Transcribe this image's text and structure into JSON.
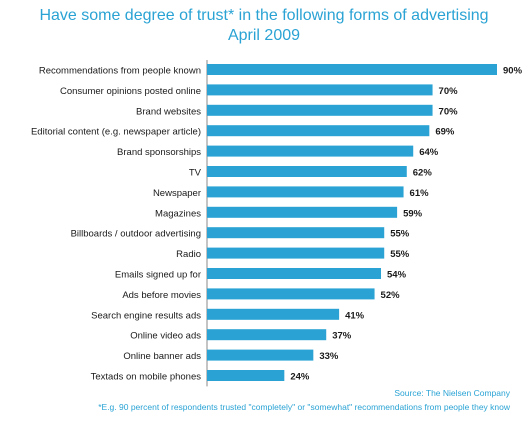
{
  "chart_data": {
    "type": "bar",
    "orientation": "horizontal",
    "title": "Have some degree of trust* in the following forms of advertising",
    "subtitle": "April 2009",
    "categories": [
      "Recommendations from people known",
      "Consumer opinions posted online",
      "Brand websites",
      "Editorial content (e.g. newspaper article)",
      "Brand sponsorships",
      "TV",
      "Newspaper",
      "Magazines",
      "Billboards / outdoor advertising",
      "Radio",
      "Emails signed up for",
      "Ads before movies",
      "Search engine results ads",
      "Online video ads",
      "Online banner ads",
      "Textads on mobile phones"
    ],
    "values": [
      90,
      70,
      70,
      69,
      64,
      62,
      61,
      59,
      55,
      55,
      54,
      52,
      41,
      37,
      33,
      24
    ],
    "value_labels": [
      "90%",
      "70%",
      "70%",
      "69%",
      "64%",
      "62%",
      "61%",
      "59%",
      "55%",
      "55%",
      "54%",
      "52%",
      "41%",
      "37%",
      "33%",
      "24%"
    ],
    "xlim": [
      0,
      90
    ],
    "grid": false,
    "legend": "none",
    "bar_color": "#2aa3d4",
    "source": "Source: The Nielsen Company",
    "footnote": "*E.g. 90 percent of respondents trusted \"completely\" or \"somewhat\" recommendations from people they know"
  }
}
